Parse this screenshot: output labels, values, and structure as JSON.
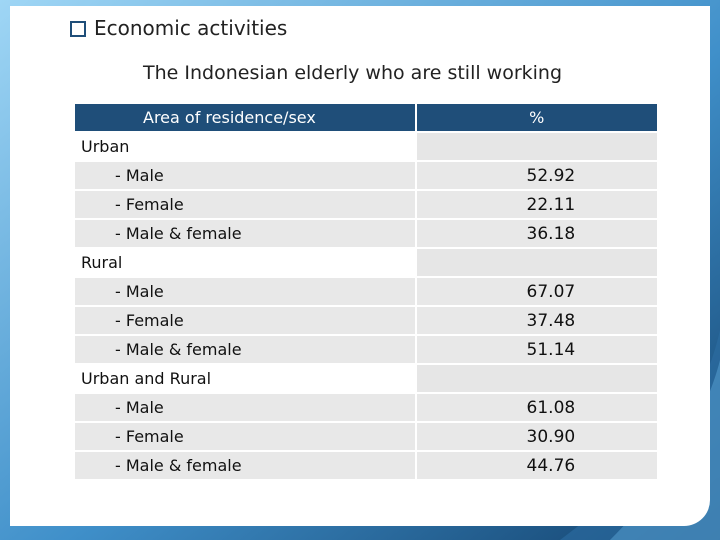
{
  "slide": {
    "heading": "Economic activities",
    "subtitle": "The Indonesian elderly who are still working",
    "bullet_icon": "checkbox-bullet-icon"
  },
  "table": {
    "headers": [
      "Area of residence/sex",
      "%"
    ],
    "sections": [
      {
        "label": "Urban",
        "rows": [
          {
            "label": "- Male",
            "value": "52.92"
          },
          {
            "label": "- Female",
            "value": "22.11"
          },
          {
            "label": "- Male & female",
            "value": "36.18"
          }
        ]
      },
      {
        "label": "Rural",
        "rows": [
          {
            "label": "- Male",
            "value": "67.07"
          },
          {
            "label": "- Female",
            "value": "37.48"
          },
          {
            "label": "- Male & female",
            "value": "51.14"
          }
        ]
      },
      {
        "label": "Urban and Rural",
        "rows": [
          {
            "label": "- Male",
            "value": "61.08"
          },
          {
            "label": "- Female",
            "value": "30.90"
          },
          {
            "label": "- Male & female",
            "value": "44.76"
          }
        ]
      }
    ]
  },
  "colors": {
    "header_fill": "#1f4e79",
    "row_fill": "#e8e8e8",
    "background_dark": "#1a4f7e",
    "background_light": "#7fc4ec"
  }
}
